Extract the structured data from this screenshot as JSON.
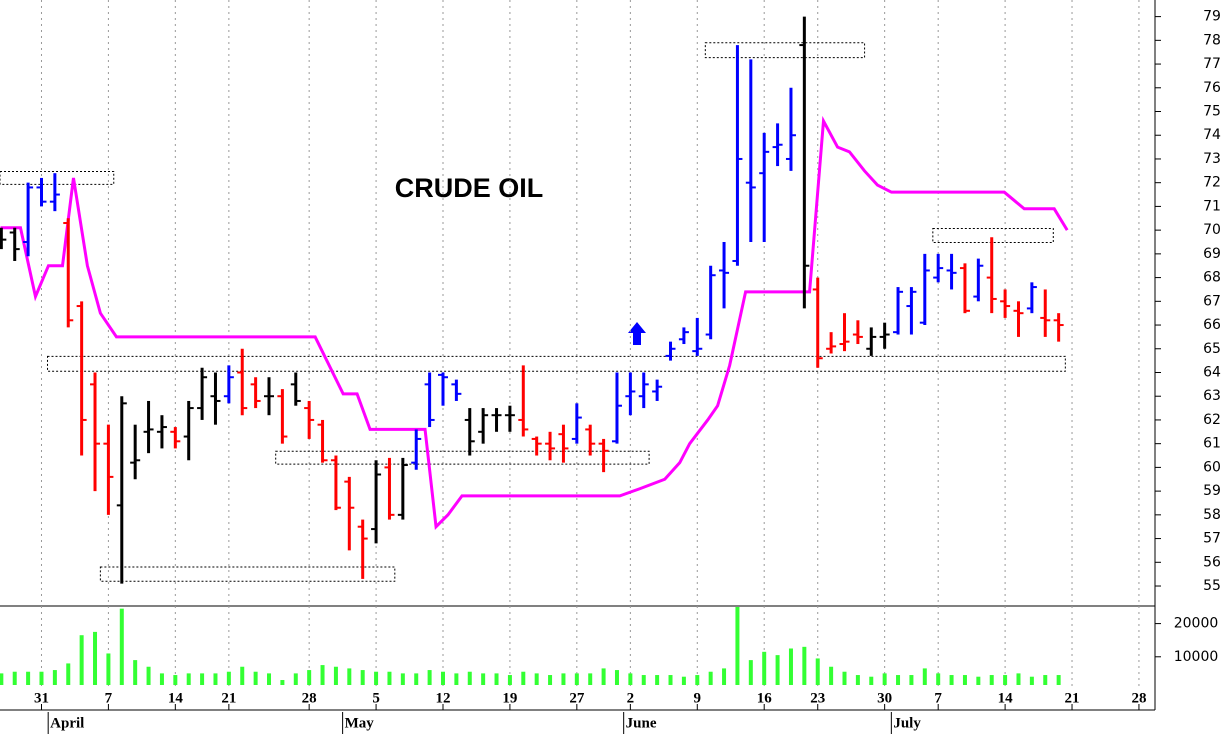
{
  "chart_data": {
    "type": "ohlc",
    "title": "CRUDE OIL",
    "xlim": [
      -3.1,
      83.2
    ],
    "xticks": [
      {
        "value": 0,
        "label": "31"
      },
      {
        "value": 5,
        "label": "7"
      },
      {
        "value": 10,
        "label": "14"
      },
      {
        "value": 14,
        "label": "21"
      },
      {
        "value": 20,
        "label": "28"
      },
      {
        "value": 25,
        "label": "5"
      },
      {
        "value": 30,
        "label": "12"
      },
      {
        "value": 35,
        "label": "19"
      },
      {
        "value": 40,
        "label": "27"
      },
      {
        "value": 44,
        "label": "2"
      },
      {
        "value": 49,
        "label": "9"
      },
      {
        "value": 54,
        "label": "16"
      },
      {
        "value": 58,
        "label": "23"
      },
      {
        "value": 63,
        "label": "30"
      },
      {
        "value": 67,
        "label": "7"
      },
      {
        "value": 72,
        "label": "14"
      },
      {
        "value": 77,
        "label": "21"
      },
      {
        "value": 82,
        "label": "28"
      }
    ],
    "months": [
      {
        "value": 0.5,
        "label": "April"
      },
      {
        "value": 22.5,
        "label": "May"
      },
      {
        "value": 43.5,
        "label": "June"
      },
      {
        "value": 63.5,
        "label": "July"
      }
    ],
    "ylim": [
      54.2,
      79.7
    ],
    "yticks": [
      55,
      56,
      57,
      58,
      59,
      60,
      61,
      62,
      63,
      64,
      65,
      66,
      67,
      68,
      69,
      70,
      71,
      72,
      73,
      74,
      75,
      76,
      77,
      78,
      79
    ],
    "grid": true,
    "x": [
      -3,
      -2,
      -1,
      0,
      1,
      2,
      3,
      4,
      5,
      6,
      7,
      8,
      9,
      10,
      11,
      12,
      13,
      14,
      15,
      16,
      17,
      18,
      19,
      20,
      21,
      22,
      23,
      24,
      25,
      26,
      27,
      28,
      29,
      30,
      31,
      32,
      33,
      34,
      35,
      36,
      37,
      38,
      39,
      40,
      41,
      42,
      43,
      44,
      45,
      46,
      47,
      48,
      49,
      50,
      51,
      52,
      53,
      54,
      55,
      56,
      57,
      58,
      59,
      60,
      61,
      62,
      63,
      64,
      65,
      66,
      67,
      68,
      69,
      70,
      71,
      72,
      73,
      74,
      75,
      76
    ],
    "open": [
      70,
      69.9,
      69.5,
      71.8,
      71.2,
      70.3,
      66.8,
      63.5,
      61,
      58.4,
      60.2,
      61.5,
      61.5,
      61.5,
      61.3,
      62.5,
      63,
      63,
      64,
      63.5,
      63,
      63,
      63.5,
      62.5,
      61.8,
      60.3,
      59.4,
      57.5,
      57.4,
      60,
      58,
      60.2,
      63.5,
      63.9,
      63.5,
      62,
      61.5,
      62.2,
      62.2,
      62,
      61.2,
      61,
      61.4,
      61.2,
      61.6,
      61,
      61.1,
      63,
      63,
      63.2,
      64.7,
      65.4,
      64.9,
      65.6,
      68.3,
      68.7,
      72,
      72.4,
      73.5,
      73,
      77.8,
      67.5,
      65,
      65.2,
      65.6,
      65,
      65.5,
      65.7,
      66.8,
      66.1,
      68,
      68.3,
      68.4,
      67.2,
      68,
      67,
      66.6,
      66.7,
      66.3,
      66.2
    ],
    "high": [
      70.1,
      70.1,
      72,
      72.2,
      72.4,
      70.5,
      67,
      64,
      61.8,
      63,
      61.8,
      62.8,
      62.2,
      61.7,
      62.8,
      64.2,
      64,
      64.3,
      65,
      63.8,
      63.8,
      63.3,
      64,
      62.8,
      62,
      60.5,
      59.6,
      57.8,
      60.3,
      60.4,
      60.4,
      61.6,
      64,
      64,
      63.7,
      62.5,
      62.5,
      62.5,
      62.6,
      64.3,
      61.3,
      61.5,
      61.8,
      62.7,
      61.8,
      61.2,
      64,
      64,
      64,
      63.7,
      65.3,
      65.9,
      66.3,
      68.5,
      69.5,
      77.8,
      77.2,
      74.1,
      74.5,
      76,
      79,
      68,
      65.7,
      66.5,
      66.2,
      65.9,
      66.1,
      67.6,
      67.6,
      69,
      69,
      69,
      68.6,
      68.8,
      69.7,
      67.5,
      67,
      67.8,
      67.5,
      66.5
    ],
    "low": [
      69.2,
      68.7,
      68.9,
      71,
      70.8,
      65.9,
      60.5,
      59,
      58,
      55.1,
      59.5,
      60.6,
      60.8,
      60.8,
      60.3,
      62,
      61.8,
      62.7,
      62.2,
      62.5,
      62.2,
      61,
      62.6,
      61.2,
      60.2,
      58.2,
      56.5,
      55.3,
      56.8,
      57.8,
      57.8,
      59.9,
      61.7,
      62.6,
      62.8,
      60.5,
      61,
      61.5,
      61.5,
      61.3,
      60.5,
      60.3,
      60.2,
      61,
      60.5,
      59.8,
      61,
      62.2,
      62.5,
      62.8,
      64.5,
      65.2,
      64.7,
      65.4,
      66.7,
      68.5,
      69.5,
      69.5,
      72.7,
      72.5,
      66.7,
      64.2,
      64.8,
      64.9,
      65.2,
      64.7,
      65,
      65.6,
      65.6,
      66,
      67.8,
      67.5,
      66.5,
      67,
      66.5,
      66.3,
      65.5,
      66.5,
      65.5,
      65.3
    ],
    "close": [
      69.6,
      69.2,
      71.8,
      71.2,
      71.5,
      66.2,
      62,
      61,
      59.6,
      62.7,
      60.3,
      61.6,
      61.7,
      61.1,
      62.5,
      63.8,
      62.8,
      63.8,
      62.5,
      62.8,
      63,
      61.3,
      62.8,
      62,
      60.3,
      58.3,
      58.3,
      57,
      59.7,
      58,
      60.1,
      61.2,
      62,
      63.8,
      63.1,
      61.1,
      62.2,
      62.2,
      62.2,
      61.6,
      61,
      60.8,
      60.8,
      62.1,
      61,
      60.7,
      62.6,
      63.2,
      63.5,
      63.4,
      65,
      65.7,
      65,
      68.1,
      68.2,
      73,
      71.8,
      73.3,
      73.6,
      74,
      68.5,
      64.6,
      65.1,
      65.3,
      65.5,
      65.5,
      65.6,
      67.4,
      67.4,
      68.3,
      68.4,
      68.2,
      66.6,
      68.5,
      67.1,
      66.8,
      66.5,
      67.6,
      66.2,
      66
    ],
    "colors": [
      "#000000",
      "#000000",
      "#0000ff",
      "#0000ff",
      "#0000ff",
      "#ff0000",
      "#ff0000",
      "#ff0000",
      "#ff0000",
      "#000000",
      "#000000",
      "#000000",
      "#000000",
      "#ff0000",
      "#000000",
      "#000000",
      "#000000",
      "#0000ff",
      "#ff0000",
      "#ff0000",
      "#000000",
      "#ff0000",
      "#000000",
      "#ff0000",
      "#ff0000",
      "#ff0000",
      "#ff0000",
      "#ff0000",
      "#000000",
      "#ff0000",
      "#000000",
      "#0000ff",
      "#0000ff",
      "#0000ff",
      "#0000ff",
      "#000000",
      "#000000",
      "#000000",
      "#000000",
      "#ff0000",
      "#ff0000",
      "#ff0000",
      "#ff0000",
      "#0000ff",
      "#ff0000",
      "#ff0000",
      "#0000ff",
      "#0000ff",
      "#0000ff",
      "#0000ff",
      "#0000ff",
      "#0000ff",
      "#0000ff",
      "#0000ff",
      "#0000ff",
      "#0000ff",
      "#0000ff",
      "#0000ff",
      "#0000ff",
      "#0000ff",
      "#000000",
      "#ff0000",
      "#ff0000",
      "#ff0000",
      "#ff0000",
      "#000000",
      "#000000",
      "#0000ff",
      "#0000ff",
      "#0000ff",
      "#0000ff",
      "#0000ff",
      "#ff0000",
      "#0000ff",
      "#ff0000",
      "#ff0000",
      "#ff0000",
      "#0000ff",
      "#ff0000",
      "#ff0000"
    ],
    "stop_line": {
      "color": "#ff00ff",
      "x": [
        -3.06,
        -1.57,
        -0.45,
        0.52,
        1.57,
        2.39,
        3.43,
        4.4,
        5.6,
        20.45,
        22.54,
        23.58,
        24.55,
        28.66,
        29.48,
        30.37,
        31.42,
        43.21,
        44.7,
        46.57,
        47.69,
        48.43,
        49.78,
        50.52,
        51.42,
        52.61,
        57.39,
        58.43,
        59.48,
        60.37,
        61.49,
        62.46,
        63.51,
        71.94,
        73.43,
        75.67,
        76.64
      ],
      "values": [
        70.1,
        70.1,
        67.2,
        68.5,
        68.5,
        72.2,
        68.5,
        66.5,
        65.5,
        65.5,
        63.1,
        63.1,
        61.6,
        61.6,
        57.5,
        58,
        58.8,
        58.8,
        59.1,
        59.5,
        60.2,
        61,
        62,
        62.6,
        64.3,
        67.4,
        67.4,
        74.6,
        73.5,
        73.3,
        72.5,
        71.9,
        71.6,
        71.6,
        70.9,
        70.9,
        70
      ]
    },
    "boxes": [
      {
        "x": [
          -3.1,
          5.4
        ],
        "y": [
          71.93,
          72.47
        ]
      },
      {
        "x": [
          0.45,
          76.5
        ],
        "y": [
          64.05,
          64.68
        ]
      },
      {
        "x": [
          4.4,
          26.4
        ],
        "y": [
          55.2,
          55.8
        ]
      },
      {
        "x": [
          17.5,
          45.4
        ],
        "y": [
          60.14,
          60.68
        ]
      },
      {
        "x": [
          49.6,
          61.5
        ],
        "y": [
          77.27,
          77.9
        ]
      },
      {
        "x": [
          66.6,
          75.6
        ],
        "y": [
          69.48,
          70.07
        ]
      }
    ],
    "volume": {
      "color": "#33ff33",
      "ylim": [
        1500,
        25000
      ],
      "yticks": [
        10000,
        20000
      ],
      "values": [
        5000,
        5500,
        5500,
        5500,
        6000,
        8000,
        16500,
        17500,
        11000,
        24500,
        9000,
        7000,
        5000,
        4500,
        5000,
        5000,
        5000,
        5500,
        7000,
        5500,
        5000,
        3000,
        5000,
        6000,
        7500,
        7000,
        6500,
        6000,
        5500,
        5500,
        5000,
        5000,
        6000,
        5500,
        5000,
        5500,
        5000,
        5000,
        4500,
        5500,
        5000,
        4500,
        5000,
        5000,
        5000,
        6500,
        6000,
        5000,
        4500,
        4500,
        4500,
        4000,
        4500,
        5500,
        6500,
        25000,
        9000,
        11500,
        10500,
        12500,
        13000,
        9500,
        7000,
        5500,
        4500,
        4000,
        5000,
        4500,
        4500,
        6500,
        5000,
        4500,
        4500,
        4000,
        4500,
        4500,
        5000,
        4000,
        4500,
        4500
      ]
    }
  }
}
